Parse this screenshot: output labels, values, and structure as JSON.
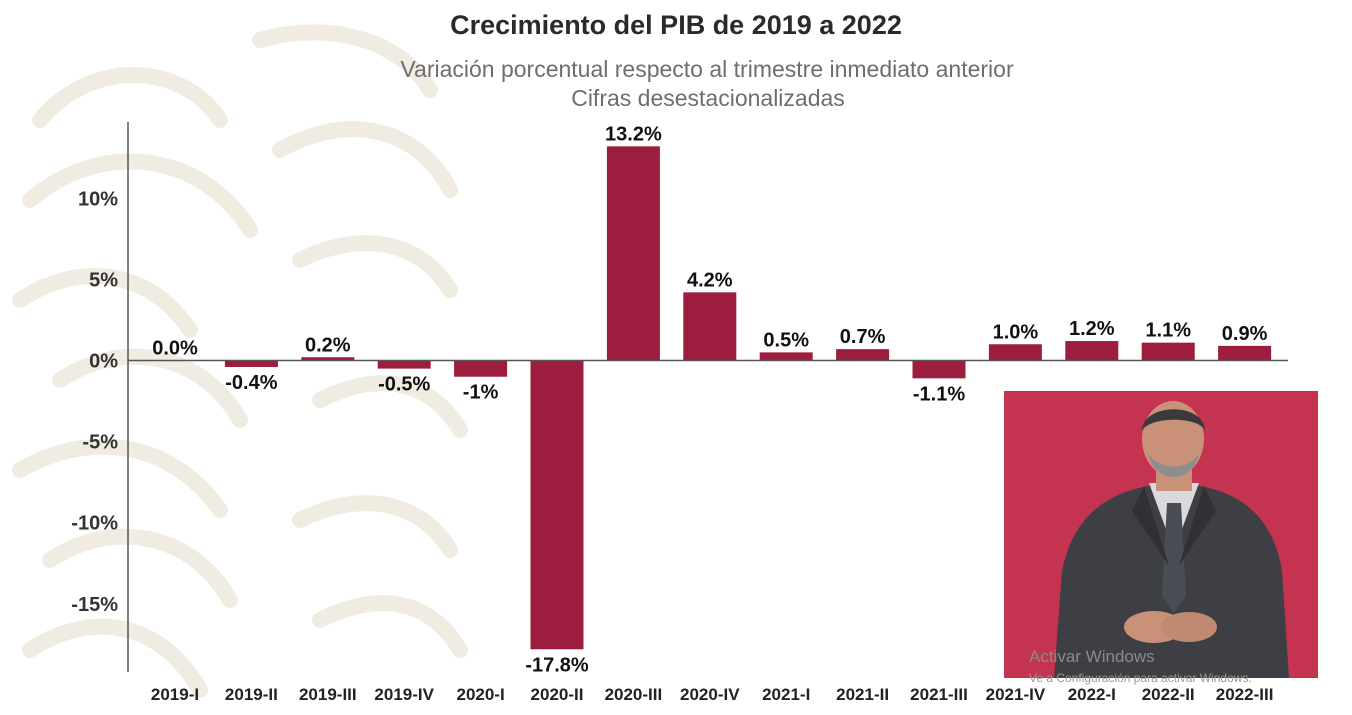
{
  "chart_data": {
    "type": "bar",
    "title": "Crecimiento del PIB de 2019 a 2022",
    "subtitle": [
      "Variación porcentual respecto al trimestre inmediato anterior",
      "Cifras desestacionalizadas"
    ],
    "categories": [
      "2019-I",
      "2019-II",
      "2019-III",
      "2019-IV",
      "2020-I",
      "2020-II",
      "2020-III",
      "2020-IV",
      "2021-I",
      "2021-II",
      "2021-III",
      "2021-IV",
      "2022-I",
      "2022-II",
      "2022-III"
    ],
    "values": [
      0.0,
      -0.4,
      0.2,
      -0.5,
      -1.0,
      -17.8,
      13.2,
      4.2,
      0.5,
      0.7,
      -1.1,
      1.0,
      1.2,
      1.1,
      0.9
    ],
    "value_labels": [
      "0.0%",
      "-0.4%",
      "0.2%",
      "-0.5%",
      "-1%",
      "-17.8%",
      "13.2%",
      "4.2%",
      "0.5%",
      "0.7%",
      "-1.1%",
      "1.0%",
      "1.2%",
      "1.1%",
      "0.9%"
    ],
    "yticks": [
      10,
      5,
      0,
      -5,
      -10,
      -15
    ],
    "ytick_labels": [
      "10%",
      "5%",
      "0%",
      "-5%",
      "-10%",
      "-15%"
    ],
    "ylim": [
      -19.2,
      14.7
    ],
    "xlabel": "",
    "ylabel": "",
    "bar_color": "#9c1d3d",
    "grid": false
  },
  "overlay": {
    "windows_activation_title": "Activar Windows",
    "windows_activation_text": "Ve a Configuración para activar Windows.",
    "interpreter_background": "#c0304f"
  }
}
